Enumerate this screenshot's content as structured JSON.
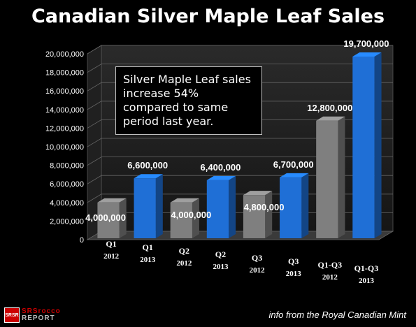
{
  "chart_data": {
    "type": "bar",
    "title": "Canadian Silver Maple Leaf Sales",
    "categories": [
      [
        "Q1",
        "2012"
      ],
      [
        "Q1",
        "2013"
      ],
      [
        "Q2",
        "2012"
      ],
      [
        "Q2",
        "2013"
      ],
      [
        "Q3",
        "2012"
      ],
      [
        "Q3",
        "2013"
      ],
      [
        "Q1-Q3",
        "2012"
      ],
      [
        "Q1-Q3",
        "2013"
      ]
    ],
    "values": [
      4000000,
      6600000,
      4000000,
      6400000,
      4800000,
      6700000,
      12800000,
      19700000
    ],
    "data_labels": [
      "4,000,000",
      "6,600,000",
      "4,000,000",
      "6,400,000",
      "4,800,000",
      "6,700,000",
      "12,800,000",
      "19,700,000"
    ],
    "bar_colors": [
      "#7f7f7f",
      "#1f6fd6",
      "#7f7f7f",
      "#1f6fd6",
      "#7f7f7f",
      "#1f6fd6",
      "#7f7f7f",
      "#1f6fd6"
    ],
    "y_ticks": [
      "0",
      "2,000,000",
      "4,000,000",
      "6,000,000",
      "8,000,000",
      "10,000,000",
      "12,000,000",
      "14,000,000",
      "16,000,000",
      "18,000,000",
      "20,000,000"
    ],
    "ylim": [
      0,
      20000000
    ],
    "grid": true,
    "annotation": "Silver Maple Leaf sales increase 54% compared to same period last year."
  },
  "source_note": "info from the Royal Canadian Mint",
  "logo": {
    "line1": "SRSrocco",
    "line2": "REPORT",
    "badge": "SRSR"
  }
}
